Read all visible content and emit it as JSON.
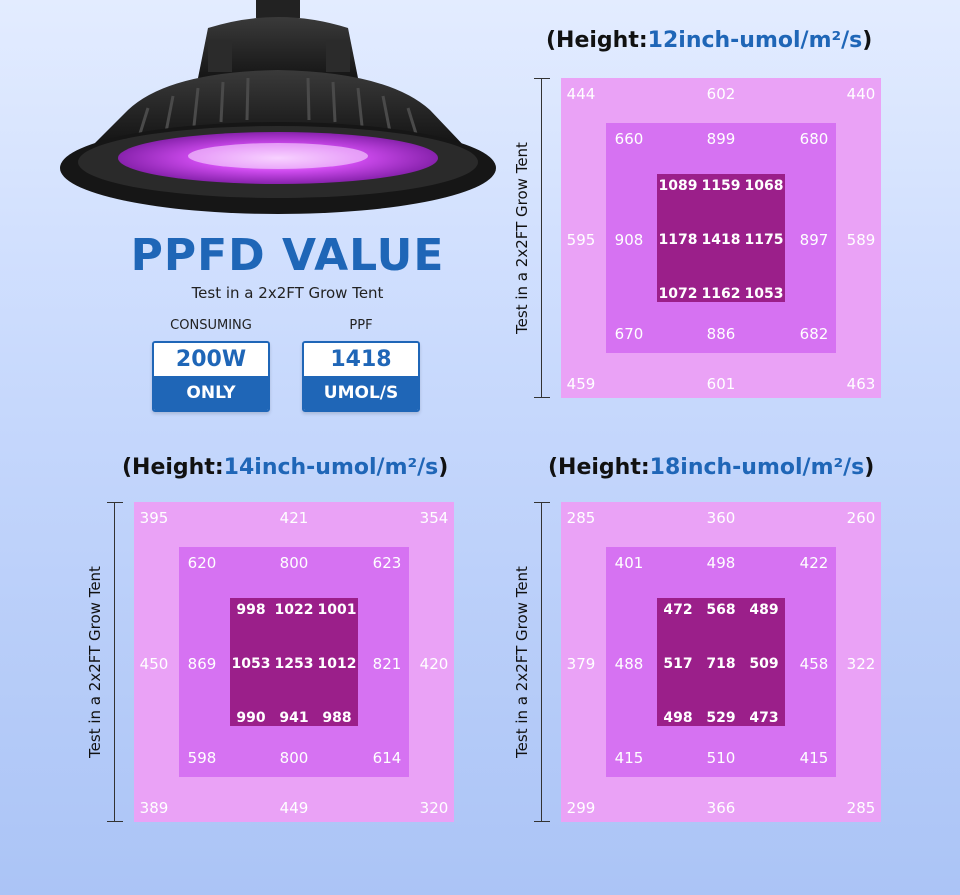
{
  "headline": "PPFD VALUE",
  "subline": "Test in a 2x2FT Grow Tent",
  "specs": [
    {
      "label": "CONSUMING",
      "top": "200W",
      "bottom": "ONLY"
    },
    {
      "label": "PPF",
      "top": "1418",
      "bottom": "UMOL/S"
    }
  ],
  "side_label": "Test in a 2x2FT Grow Tent",
  "charts": [
    {
      "title_prefix": "(Height:",
      "title_value": "12inch-umol/m²/s",
      "title_suffix": ")",
      "outer": [
        "444",
        "602",
        "440",
        "595",
        "589",
        "459",
        "601",
        "463"
      ],
      "middle": [
        "660",
        "899",
        "680",
        "908",
        "897",
        "670",
        "886",
        "682"
      ],
      "inner": [
        "1089",
        "1159",
        "1068",
        "1178",
        "1418",
        "1175",
        "1072",
        "1162",
        "1053"
      ]
    },
    {
      "title_prefix": "(Height:",
      "title_value": "14inch-umol/m²/s",
      "title_suffix": ")",
      "outer": [
        "395",
        "421",
        "354",
        "450",
        "420",
        "389",
        "449",
        "320"
      ],
      "middle": [
        "620",
        "800",
        "623",
        "869",
        "821",
        "598",
        "800",
        "614"
      ],
      "inner": [
        "998",
        "1022",
        "1001",
        "1053",
        "1253",
        "1012",
        "990",
        "941",
        "988"
      ]
    },
    {
      "title_prefix": "(Height:",
      "title_value": "18inch-umol/m²/s",
      "title_suffix": ")",
      "outer": [
        "285",
        "360",
        "260",
        "379",
        "322",
        "299",
        "366",
        "285"
      ],
      "middle": [
        "401",
        "498",
        "422",
        "488",
        "458",
        "415",
        "510",
        "415"
      ],
      "inner": [
        "472",
        "568",
        "489",
        "517",
        "718",
        "509",
        "498",
        "529",
        "473"
      ]
    }
  ],
  "colors": {
    "accent": "#1f66b7",
    "outer": "#eaa2f6",
    "middle": "#d672f2",
    "inner": "#9b1f8a"
  }
}
